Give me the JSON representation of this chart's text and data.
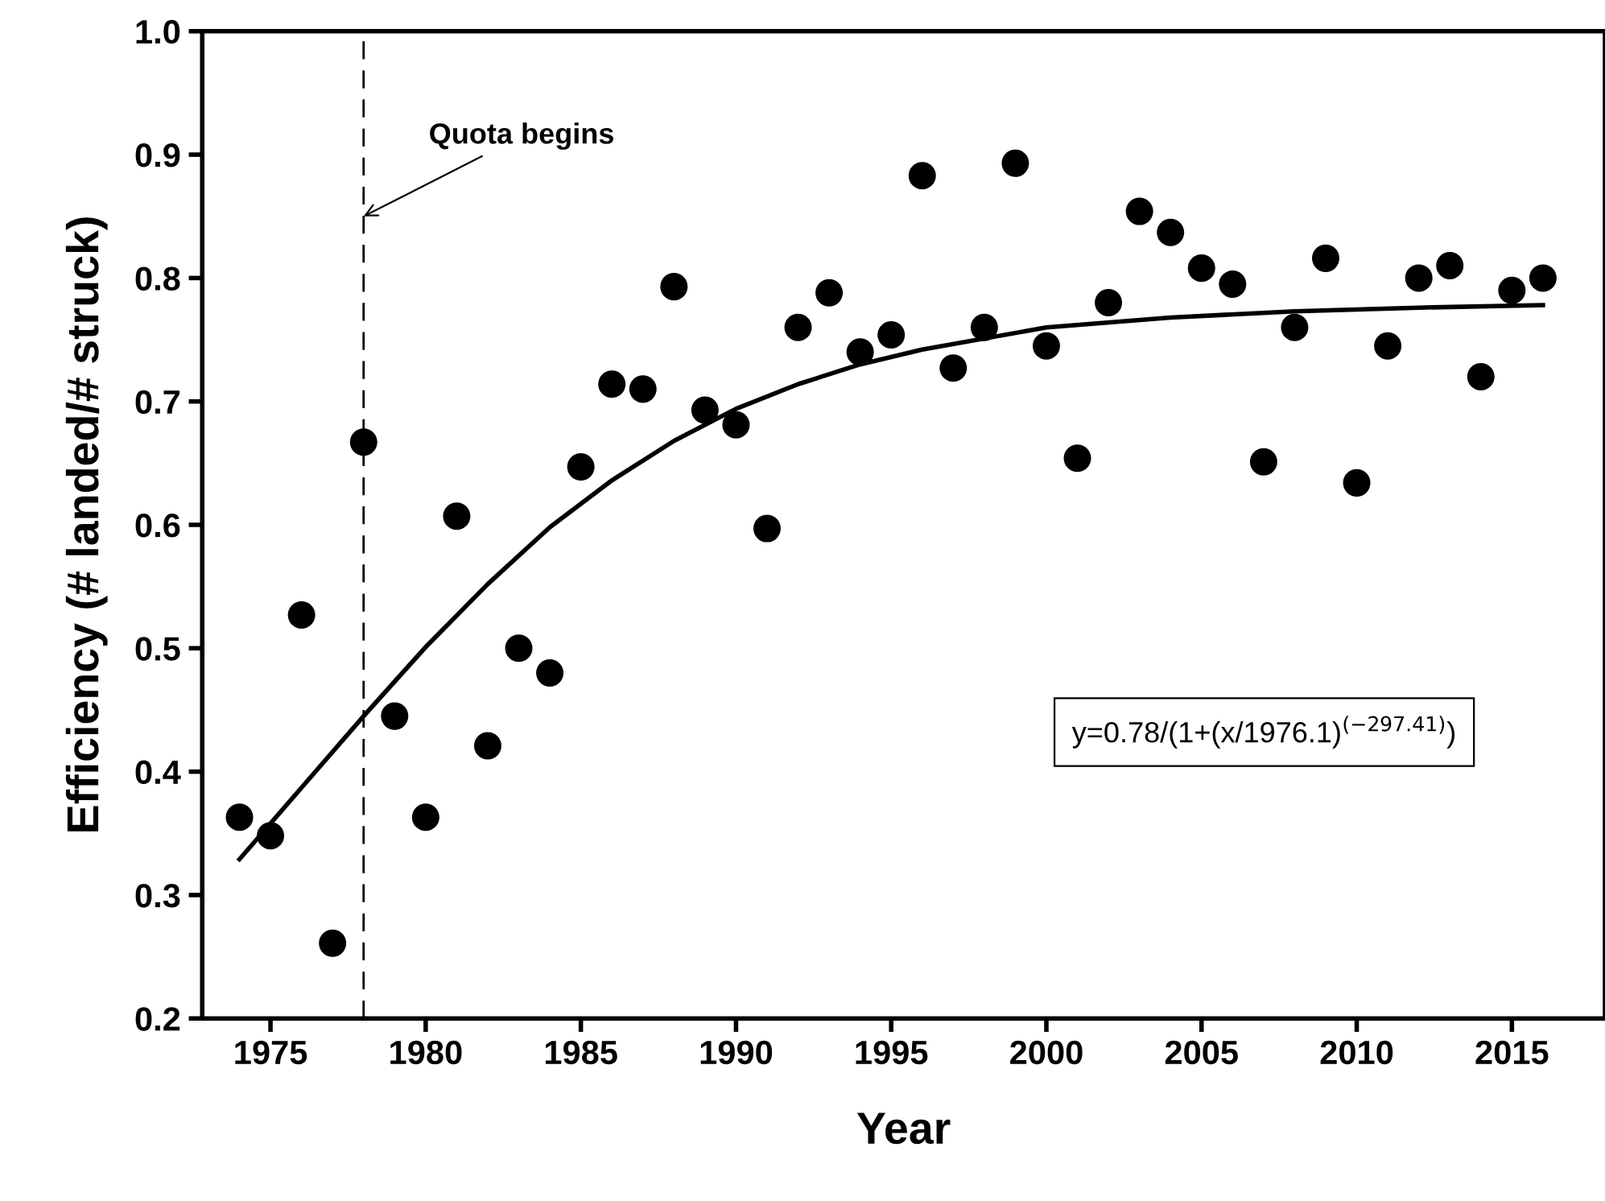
{
  "chart_data": {
    "type": "scatter",
    "xlabel": "Year",
    "ylabel": "Efficiency (# landed/# struck)",
    "xlim": [
      1972.8,
      2018
    ],
    "xticks": [
      1975,
      1980,
      1985,
      1990,
      1995,
      2000,
      2005,
      2010,
      2015
    ],
    "ylim": [
      0.2,
      1.0
    ],
    "yticks": [
      0.2,
      0.3,
      0.4,
      0.5,
      0.6,
      0.7,
      0.8,
      0.9,
      {
        "value": 1,
        "label": "1.0"
      }
    ],
    "grid": false,
    "legend": false,
    "series": [
      {
        "color": "#000000",
        "marker": "circle",
        "x": [
          1974,
          1975,
          1976,
          1977,
          1978,
          1979,
          1980,
          1981,
          1982,
          1983,
          1984,
          1985,
          1986,
          1987,
          1988,
          1989,
          1990,
          1991,
          1992,
          1993,
          1994,
          1995,
          1996,
          1997,
          1998,
          1999,
          2000,
          2001,
          2002,
          2003,
          2004,
          2005,
          2006,
          2007,
          2008,
          2009,
          2010,
          2011,
          2012,
          2013,
          2014,
          2015,
          2016
        ],
        "values": [
          0.363,
          0.348,
          0.527,
          0.261,
          0.667,
          0.445,
          0.363,
          0.607,
          0.421,
          0.5,
          0.48,
          0.647,
          0.714,
          0.71,
          0.793,
          0.693,
          0.681,
          0.597,
          0.76,
          0.788,
          0.74,
          0.754,
          0.883,
          0.727,
          0.76,
          0.893,
          0.745,
          0.654,
          0.78,
          0.854,
          0.837,
          0.808,
          0.795,
          0.651,
          0.76,
          0.816,
          0.634,
          0.745,
          0.8,
          0.81,
          0.72,
          0.79,
          0.8
        ]
      },
      {
        "type": "line",
        "color": "#000000",
        "line_style": "solid",
        "x": [
          1974,
          1976,
          1978,
          1980,
          1982,
          1984,
          1986,
          1988,
          1990,
          1992,
          1994,
          1996,
          2000,
          2004,
          2008,
          2012,
          2016
        ],
        "values": [
          0.329,
          0.387,
          0.445,
          0.501,
          0.552,
          0.598,
          0.636,
          0.668,
          0.694,
          0.714,
          0.73,
          0.742,
          0.76,
          0.768,
          0.773,
          0.776,
          0.778
        ]
      }
    ],
    "ref_lines": [
      {
        "axis": "x",
        "value": 1978,
        "line_style": "dashed",
        "color": "#000000"
      }
    ],
    "annotations": [
      {
        "text": "Quota begins",
        "x": 1978,
        "y": 0.85
      },
      "y=0.78/(1+(x/1976.1)$^{(−297.41)}$)"
    ]
  }
}
